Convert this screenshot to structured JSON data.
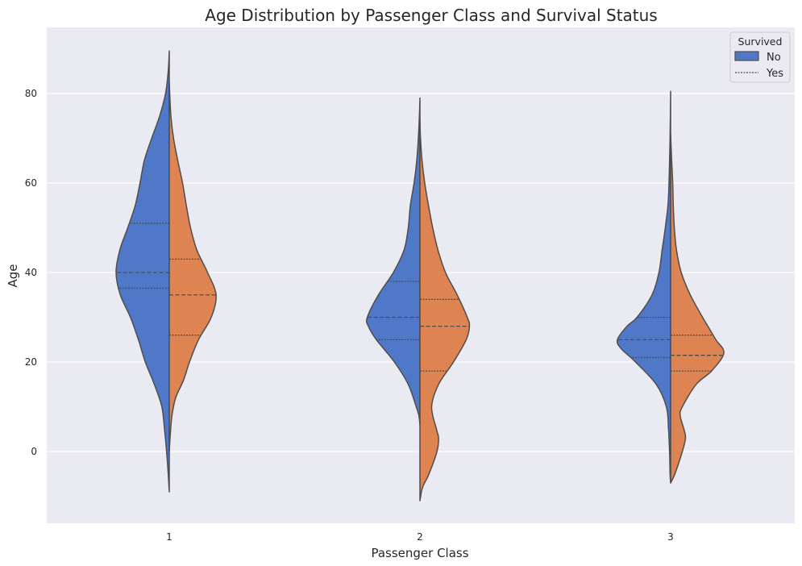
{
  "chart_data": {
    "type": "violin",
    "title": "Age Distribution by Passenger Class and Survival Status",
    "xlabel": "Passenger Class",
    "ylabel": "Age",
    "categories": [
      "1",
      "2",
      "3"
    ],
    "yticks": [
      0,
      20,
      40,
      60,
      80
    ],
    "ylim": [
      -16,
      95
    ],
    "grid": true,
    "split": true,
    "legend": {
      "title": "Survived",
      "placement": "top-right",
      "entries": [
        {
          "label": "No",
          "color": "#5078c8"
        },
        {
          "label": "Yes",
          "color": "#dd8452"
        }
      ]
    },
    "series": [
      {
        "name": "No",
        "color": "#5078c8",
        "side": "left",
        "violins": [
          {
            "category": "1",
            "range": [
              -9,
              89.5
            ],
            "profile": [
              [
                -9,
                0
              ],
              [
                -5,
                0.02
              ],
              [
                0,
                0.05
              ],
              [
                5,
                0.09
              ],
              [
                10,
                0.14
              ],
              [
                15,
                0.28
              ],
              [
                20,
                0.45
              ],
              [
                25,
                0.58
              ],
              [
                30,
                0.73
              ],
              [
                35,
                0.92
              ],
              [
                40,
                1.0
              ],
              [
                45,
                0.93
              ],
              [
                50,
                0.78
              ],
              [
                55,
                0.64
              ],
              [
                60,
                0.55
              ],
              [
                65,
                0.47
              ],
              [
                70,
                0.33
              ],
              [
                75,
                0.18
              ],
              [
                80,
                0.07
              ],
              [
                85,
                0.02
              ],
              [
                89.5,
                0
              ]
            ],
            "quartiles": [
              36.5,
              40,
              51
            ]
          },
          {
            "category": "2",
            "range": [
              6,
              79
            ],
            "profile": [
              [
                6,
                0
              ],
              [
                8,
                0.02
              ],
              [
                10,
                0.07
              ],
              [
                15,
                0.22
              ],
              [
                20,
                0.48
              ],
              [
                25,
                0.82
              ],
              [
                28,
                0.97
              ],
              [
                30,
                0.99
              ],
              [
                35,
                0.78
              ],
              [
                40,
                0.5
              ],
              [
                45,
                0.3
              ],
              [
                50,
                0.22
              ],
              [
                55,
                0.18
              ],
              [
                60,
                0.11
              ],
              [
                65,
                0.06
              ],
              [
                70,
                0.03
              ],
              [
                75,
                0.01
              ],
              [
                79,
                0
              ]
            ],
            "quartiles": [
              25,
              30,
              38
            ]
          },
          {
            "category": "3",
            "range": [
              -7,
              80.5
            ],
            "profile": [
              [
                -7,
                0
              ],
              [
                -5,
                0.01
              ],
              [
                0,
                0.02
              ],
              [
                5,
                0.04
              ],
              [
                10,
                0.08
              ],
              [
                15,
                0.27
              ],
              [
                20,
                0.66
              ],
              [
                23,
                0.93
              ],
              [
                25,
                1.0
              ],
              [
                28,
                0.82
              ],
              [
                30,
                0.63
              ],
              [
                35,
                0.35
              ],
              [
                40,
                0.22
              ],
              [
                45,
                0.16
              ],
              [
                50,
                0.1
              ],
              [
                55,
                0.05
              ],
              [
                60,
                0.03
              ],
              [
                65,
                0.02
              ],
              [
                70,
                0.01
              ],
              [
                80.5,
                0
              ]
            ],
            "quartiles": [
              21,
              25,
              30
            ]
          }
        ]
      },
      {
        "name": "Yes",
        "color": "#dd8452",
        "side": "right",
        "violins": [
          {
            "category": "1",
            "range": [
              0,
              82.5
            ],
            "profile": [
              [
                0,
                0
              ],
              [
                4,
                0.02
              ],
              [
                8,
                0.05
              ],
              [
                12,
                0.12
              ],
              [
                16,
                0.27
              ],
              [
                20,
                0.38
              ],
              [
                25,
                0.55
              ],
              [
                30,
                0.79
              ],
              [
                35,
                0.88
              ],
              [
                40,
                0.72
              ],
              [
                45,
                0.52
              ],
              [
                50,
                0.4
              ],
              [
                55,
                0.32
              ],
              [
                60,
                0.25
              ],
              [
                65,
                0.16
              ],
              [
                70,
                0.08
              ],
              [
                75,
                0.03
              ],
              [
                82.5,
                0
              ]
            ],
            "quartiles": [
              26,
              35,
              43
            ]
          },
          {
            "category": "2",
            "range": [
              -11,
              74
            ],
            "profile": [
              [
                -11,
                0
              ],
              [
                -8,
                0.05
              ],
              [
                -5,
                0.17
              ],
              [
                0,
                0.32
              ],
              [
                3,
                0.35
              ],
              [
                5,
                0.31
              ],
              [
                10,
                0.22
              ],
              [
                15,
                0.35
              ],
              [
                20,
                0.63
              ],
              [
                25,
                0.87
              ],
              [
                28,
                0.93
              ],
              [
                30,
                0.89
              ],
              [
                35,
                0.7
              ],
              [
                40,
                0.48
              ],
              [
                45,
                0.34
              ],
              [
                50,
                0.24
              ],
              [
                55,
                0.16
              ],
              [
                60,
                0.09
              ],
              [
                65,
                0.04
              ],
              [
                70,
                0.01
              ],
              [
                74,
                0
              ]
            ],
            "quartiles": [
              18,
              28,
              34
            ]
          },
          {
            "category": "3",
            "range": [
              -7,
              71
            ],
            "profile": [
              [
                -7,
                0
              ],
              [
                -5,
                0.08
              ],
              [
                0,
                0.22
              ],
              [
                3,
                0.28
              ],
              [
                5,
                0.25
              ],
              [
                8,
                0.18
              ],
              [
                10,
                0.22
              ],
              [
                15,
                0.48
              ],
              [
                18,
                0.77
              ],
              [
                22,
                1.0
              ],
              [
                25,
                0.85
              ],
              [
                28,
                0.7
              ],
              [
                30,
                0.6
              ],
              [
                35,
                0.37
              ],
              [
                40,
                0.2
              ],
              [
                45,
                0.11
              ],
              [
                50,
                0.07
              ],
              [
                55,
                0.05
              ],
              [
                60,
                0.04
              ],
              [
                65,
                0.02
              ],
              [
                71,
                0
              ]
            ],
            "quartiles": [
              18,
              21.5,
              26
            ]
          }
        ]
      }
    ]
  }
}
